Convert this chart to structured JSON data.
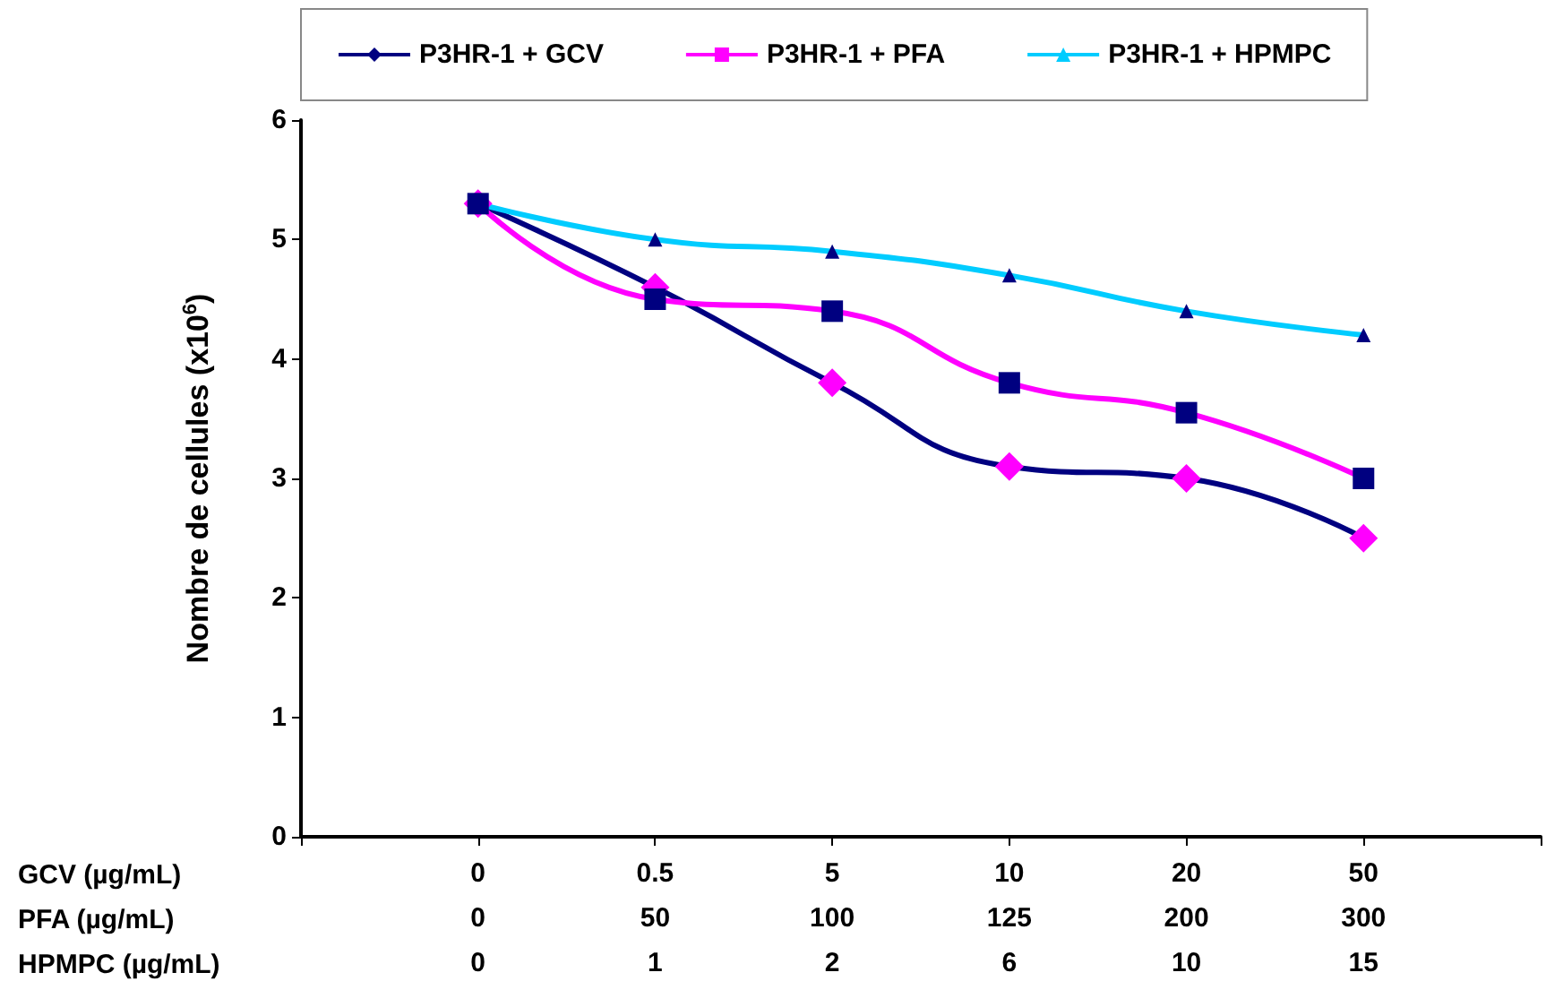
{
  "chart_data": {
    "type": "line",
    "ylabel": "Nombre de cellules (x10$^{6}$)",
    "categories": [
      null,
      "0\n0\n0",
      "0.5\n50\n1",
      "5\n100\n2",
      "10\n125\n6",
      "20\n200\n10",
      "50\n300\n15",
      null
    ],
    "series": [
      {
        "name": "P3HR-1 + GCV",
        "color": "#000080",
        "marker": "diamond",
        "colors": [
          null,
          "#ff00ff",
          "#ff00ff",
          "#ff00ff",
          "#ff00ff",
          "#ff00ff",
          "#ff00ff",
          null
        ],
        "values": [
          null,
          5.3,
          4.6,
          3.8,
          3.1,
          3.0,
          2.5,
          null
        ]
      },
      {
        "name": "P3HR-1 + PFA",
        "color": "#ff00ff",
        "marker": "square",
        "colors": [
          null,
          "#000080",
          "#000080",
          "#000080",
          "#000080",
          "#000080",
          "#000080",
          null
        ],
        "values": [
          null,
          5.3,
          4.5,
          4.4,
          3.8,
          3.55,
          3.0,
          null
        ]
      },
      {
        "name": "P3HR-1 + HPMPC",
        "color": "#00ccff",
        "marker": "triangle",
        "colors": [
          null,
          "#000080",
          "#000080",
          "#000080",
          "#000080",
          "#000080",
          "#000080",
          null
        ],
        "values": [
          null,
          5.3,
          5.0,
          4.9,
          4.7,
          4.4,
          4.2,
          null
        ]
      }
    ],
    "ylim": [
      0,
      6
    ],
    "yticks": [
      0,
      1,
      2,
      3,
      4,
      5,
      6
    ],
    "grid": false,
    "legend": "top",
    "annotations": [
      "GCV (µg/mL)",
      "PFA (µg/mL)",
      "HPMPC (µg/mL)"
    ]
  }
}
